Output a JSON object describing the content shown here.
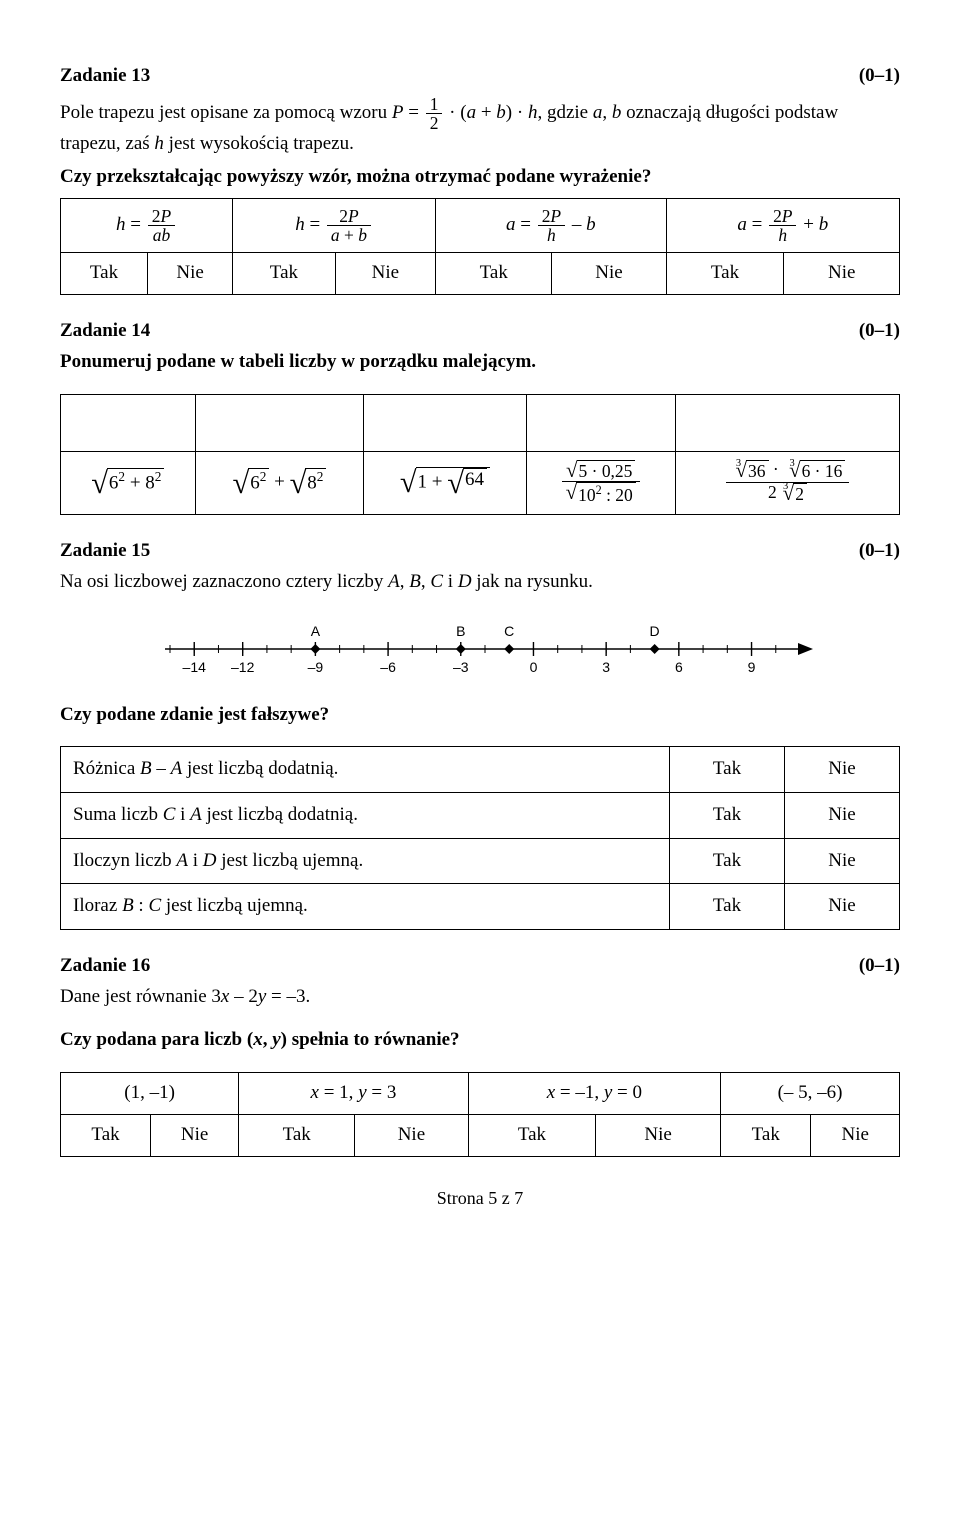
{
  "task13": {
    "title": "Zadanie 13",
    "points": "(0–1)",
    "intro_a": "Pole trapezu jest opisane za pomocą wzoru ",
    "intro_b": ", gdzie ",
    "intro_c": " oznaczają długości podstaw trapezu, zaś ",
    "intro_d": " jest wysokością trapezu.",
    "question": "Czy przekształcając powyższy wzór, można otrzymać podane wyrażenie?",
    "tak": "Tak",
    "nie": "Nie"
  },
  "task14": {
    "title": "Zadanie 14",
    "points": "(0–1)",
    "question": "Ponumeruj podane w tabeli liczby w porządku malejącym."
  },
  "task15": {
    "title": "Zadanie 15",
    "points": "(0–1)",
    "intro": "Na osi liczbowej zaznaczono cztery liczby ",
    "intro_end": " jak na rysunku.",
    "question": "Czy podane zdanie jest fałszywe?",
    "rows": [
      {
        "stmt_a": "Różnica ",
        "stmt_b": " jest liczbą dodatnią."
      },
      {
        "stmt_a": "Suma liczb ",
        "stmt_b": " jest liczbą dodatnią."
      },
      {
        "stmt_a": "Iloczyn liczb ",
        "stmt_b": " jest liczbą ujemną."
      },
      {
        "stmt_a": "Iloraz ",
        "stmt_b": " jest liczbą ujemną."
      }
    ],
    "tak": "Tak",
    "nie": "Nie",
    "numline": {
      "ticks": [
        -14,
        -12,
        -9,
        -6,
        -3,
        0,
        3,
        6,
        9
      ],
      "labels": [
        {
          "x": -9,
          "t": "A"
        },
        {
          "x": -3,
          "t": "B"
        },
        {
          "x": -1,
          "t": "C"
        },
        {
          "x": 5,
          "t": "D"
        }
      ]
    }
  },
  "task16": {
    "title": "Zadanie 16",
    "points": "(0–1)",
    "intro": "Dane jest równanie 3",
    "intro_mid": " – 2",
    "intro_end": " = –3.",
    "question": "Czy podana para liczb (",
    "question_mid": ", ",
    "question_end": ") spełnia to równanie?",
    "c1": "(1, –1)",
    "c4": "(– 5, –6)",
    "tak": "Tak",
    "nie": "Nie"
  },
  "footer": "Strona 5 z 7"
}
